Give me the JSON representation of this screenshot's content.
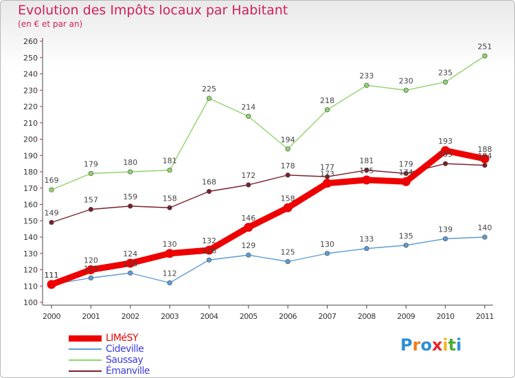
{
  "header": {
    "title": "Evolution des Impôts locaux par Habitant",
    "subtitle": "(en € et par an)"
  },
  "brand": {
    "letters": [
      "P",
      "r",
      "o",
      "x",
      "i",
      "t",
      "i"
    ],
    "colors": [
      "#2d8fd6",
      "#ef7d1a",
      "#2d8fd6",
      "#e3262c",
      "#f0b820",
      "#4cae32",
      "#2d8fd6"
    ]
  },
  "chart_data": {
    "type": "line",
    "x": [
      2000,
      2001,
      2002,
      2003,
      2004,
      2005,
      2006,
      2007,
      2008,
      2009,
      2010,
      2011
    ],
    "ylim": [
      100,
      260
    ],
    "yticks": [
      100,
      110,
      120,
      130,
      140,
      150,
      160,
      170,
      180,
      190,
      200,
      210,
      220,
      230,
      240,
      250,
      260
    ],
    "grid": false,
    "legend_position": "bottom-left",
    "series": [
      {
        "name": "LIMéSY",
        "values": [
          111,
          120,
          124,
          130,
          132,
          146,
          158,
          173,
          175,
          174,
          193,
          188
        ],
        "labels": [
          "111",
          "120",
          "124",
          "130",
          "132",
          "146",
          "158",
          "173",
          "175",
          "174",
          "193",
          "188"
        ],
        "color": "#ee0000",
        "legend_color": "#ee0000"
      },
      {
        "name": "Cideville",
        "values": [
          111,
          115,
          118,
          112,
          126,
          129,
          125,
          130,
          133,
          135,
          139,
          140
        ],
        "labels": [
          "111",
          "115",
          "118",
          "112",
          "126",
          "129",
          "125",
          "130",
          "133",
          "135",
          "139",
          "140"
        ],
        "color": "#5b9bd5",
        "legend_color": "#3c3cdc"
      },
      {
        "name": "Saussay",
        "values": [
          169,
          179,
          180,
          181,
          225,
          214,
          194,
          218,
          233,
          230,
          235,
          251
        ],
        "labels": [
          "169",
          "179",
          "180",
          "181",
          "225",
          "214",
          "194",
          "218",
          "233",
          "230",
          "235",
          "251"
        ],
        "color": "#8fd46a",
        "legend_color": "#3c3cdc"
      },
      {
        "name": "Émanville",
        "values": [
          149,
          157,
          159,
          158,
          168,
          172,
          178,
          177,
          181,
          179,
          185,
          184
        ],
        "labels": [
          "149",
          "157",
          "159",
          "158",
          "168",
          "172",
          "178",
          "177",
          "181",
          "179",
          "185",
          "184"
        ],
        "color": "#7a1f2a",
        "legend_color": "#3c3cdc"
      }
    ]
  }
}
